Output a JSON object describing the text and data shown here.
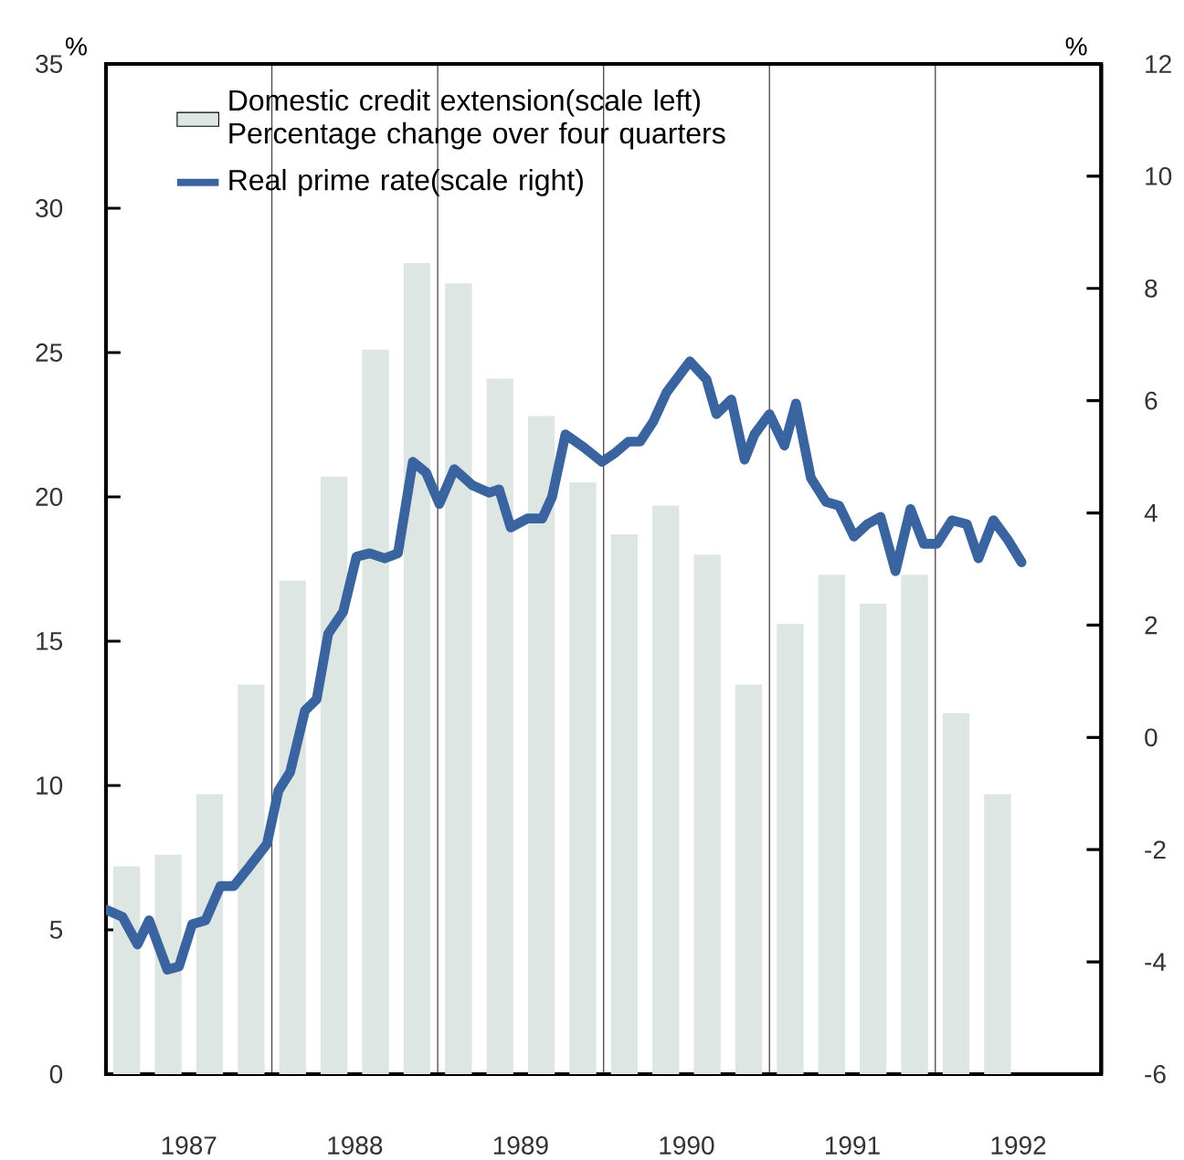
{
  "chart_data": {
    "type": "bar",
    "ylabel": "%",
    "y2label": "%",
    "xlim": [
      1987,
      1993
    ],
    "xticks": [
      {
        "value": 1988,
        "label": null
      },
      {
        "value": 1989,
        "label": null
      },
      {
        "value": 1990,
        "label": null
      },
      {
        "value": 1991,
        "label": null
      },
      {
        "value": 1992,
        "label": null
      },
      {
        "value": 1987.5,
        "label": "1987"
      },
      {
        "value": 1988.5,
        "label": "1988"
      },
      {
        "value": 1989.5,
        "label": "1989"
      },
      {
        "value": 1990.5,
        "label": "1990"
      },
      {
        "value": 1991.5,
        "label": "1991"
      },
      {
        "value": 1992.5,
        "label": "1992"
      }
    ],
    "ylim": [
      0,
      35
    ],
    "yticks": [
      0,
      5,
      10,
      15,
      20,
      25,
      30,
      35
    ],
    "y2lim": [
      -6,
      12
    ],
    "y2ticks": [
      -6,
      -4,
      -2,
      0,
      2,
      4,
      6,
      8,
      10,
      12
    ],
    "grid": "x",
    "legend": "top left",
    "series": [
      {
        "name": "Domestic credit extension(scale left) Percentage change over four quarters",
        "color": "#dde6e3",
        "x": [
          1987.125,
          1987.375,
          1987.625,
          1987.875,
          1988.125,
          1988.375,
          1988.625,
          1988.875,
          1989.125,
          1989.375,
          1989.625,
          1989.875,
          1990.125,
          1990.375,
          1990.625,
          1990.875,
          1991.125,
          1991.375,
          1991.625,
          1991.875,
          1992.125,
          1992.375
        ],
        "values": [
          7.2,
          7.6,
          9.7,
          13.5,
          17.1,
          20.7,
          25.1,
          28.1,
          27.4,
          24.1,
          22.8,
          20.5,
          18.7,
          19.7,
          18.0,
          13.5,
          15.6,
          17.3,
          16.3,
          17.3,
          12.5,
          9.7
        ]
      },
      {
        "name": "Real prime rate(scale right)",
        "type": "line",
        "axis": "y2",
        "color": "#3a64a0",
        "x": [
          1987.0,
          1987.1,
          1987.19,
          1987.26,
          1987.37,
          1987.44,
          1987.52,
          1987.6,
          1987.69,
          1987.77,
          1987.86,
          1987.97,
          1988.04,
          1988.11,
          1988.2,
          1988.27,
          1988.34,
          1988.43,
          1988.51,
          1988.59,
          1988.68,
          1988.76,
          1988.85,
          1988.93,
          1989.01,
          1989.1,
          1989.21,
          1989.31,
          1989.37,
          1989.44,
          1989.54,
          1989.63,
          1989.69,
          1989.77,
          1989.88,
          1989.99,
          1990.07,
          1990.15,
          1990.22,
          1990.3,
          1990.38,
          1990.52,
          1990.62,
          1990.68,
          1990.77,
          1990.85,
          1990.91,
          1991.0,
          1991.09,
          1991.16,
          1991.25,
          1991.34,
          1991.42,
          1991.51,
          1991.59,
          1991.67,
          1991.76,
          1991.85,
          1991.93,
          1992.01,
          1992.1,
          1992.19,
          1992.26,
          1992.35,
          1992.44,
          1992.52
        ],
        "values": [
          -3.07,
          -3.2,
          -3.69,
          -3.26,
          -4.14,
          -4.08,
          -3.33,
          -3.26,
          -2.65,
          -2.65,
          -2.32,
          -1.9,
          -0.95,
          -0.62,
          0.48,
          0.68,
          1.85,
          2.24,
          3.22,
          3.28,
          3.19,
          3.28,
          4.91,
          4.72,
          4.16,
          4.78,
          4.49,
          4.36,
          4.42,
          3.74,
          3.9,
          3.9,
          4.29,
          5.4,
          5.17,
          4.91,
          5.07,
          5.27,
          5.27,
          5.63,
          6.15,
          6.7,
          6.38,
          5.76,
          6.02,
          4.95,
          5.4,
          5.76,
          5.2,
          5.95,
          4.62,
          4.2,
          4.13,
          3.58,
          3.8,
          3.93,
          2.96,
          4.07,
          3.45,
          3.45,
          3.87,
          3.8,
          3.19,
          3.87,
          3.51,
          3.12
        ]
      }
    ]
  }
}
